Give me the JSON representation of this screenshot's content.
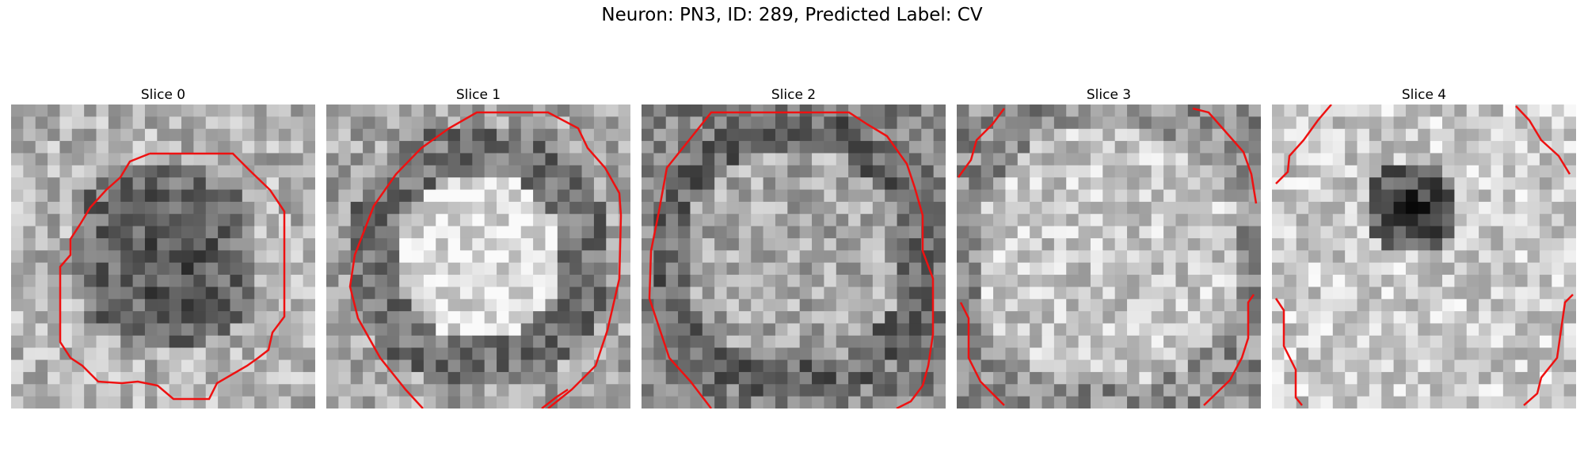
{
  "figure": {
    "title": "Neuron: PN3, ID: 289, Predicted Label: CV"
  },
  "panels": [
    {
      "title": "Slice 0",
      "seed": 11,
      "pattern": "dark-center"
    },
    {
      "title": "Slice 1",
      "seed": 23,
      "pattern": "bright-center-dark-ring"
    },
    {
      "title": "Slice 2",
      "seed": 37,
      "pattern": "mottled-dark-ring"
    },
    {
      "title": "Slice 3",
      "seed": 41,
      "pattern": "light-uniform"
    },
    {
      "title": "Slice 4",
      "seed": 59,
      "pattern": "dark-spot"
    }
  ],
  "colors": {
    "contour": "#ee1111",
    "background": "#ffffff"
  }
}
